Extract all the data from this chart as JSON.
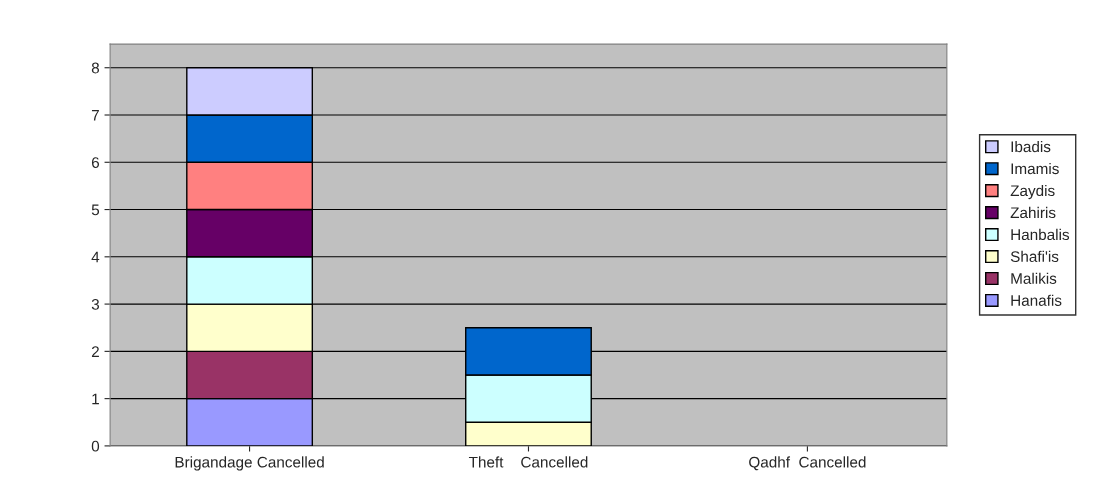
{
  "chart_data": {
    "type": "bar",
    "stacked": true,
    "categories": [
      "Brigandage Cancelled",
      "Theft    Cancelled",
      "Qadhf  Cancelled"
    ],
    "series": [
      {
        "name": "Hanafis",
        "color": "#9999ff",
        "values": [
          1,
          null,
          null
        ]
      },
      {
        "name": "Malikis",
        "color": "#993366",
        "values": [
          1,
          null,
          null
        ]
      },
      {
        "name": "Shafi'is",
        "color": "#ffffcc",
        "values": [
          1,
          0.5,
          null
        ]
      },
      {
        "name": "Hanbalis",
        "color": "#ccffff",
        "values": [
          1,
          1,
          null
        ]
      },
      {
        "name": "Zahiris",
        "color": "#660066",
        "values": [
          1,
          null,
          null
        ]
      },
      {
        "name": "Zaydis",
        "color": "#ff8080",
        "values": [
          1,
          null,
          null
        ]
      },
      {
        "name": "Imamis",
        "color": "#0066cc",
        "values": [
          1,
          1,
          null
        ]
      },
      {
        "name": "Ibadis",
        "color": "#ccccff",
        "values": [
          1,
          null,
          null
        ]
      }
    ],
    "ylim": [
      0,
      8.5
    ],
    "yticks": [
      0,
      1,
      2,
      3,
      4,
      5,
      6,
      7,
      8
    ],
    "grid": "y",
    "legend": "right"
  }
}
